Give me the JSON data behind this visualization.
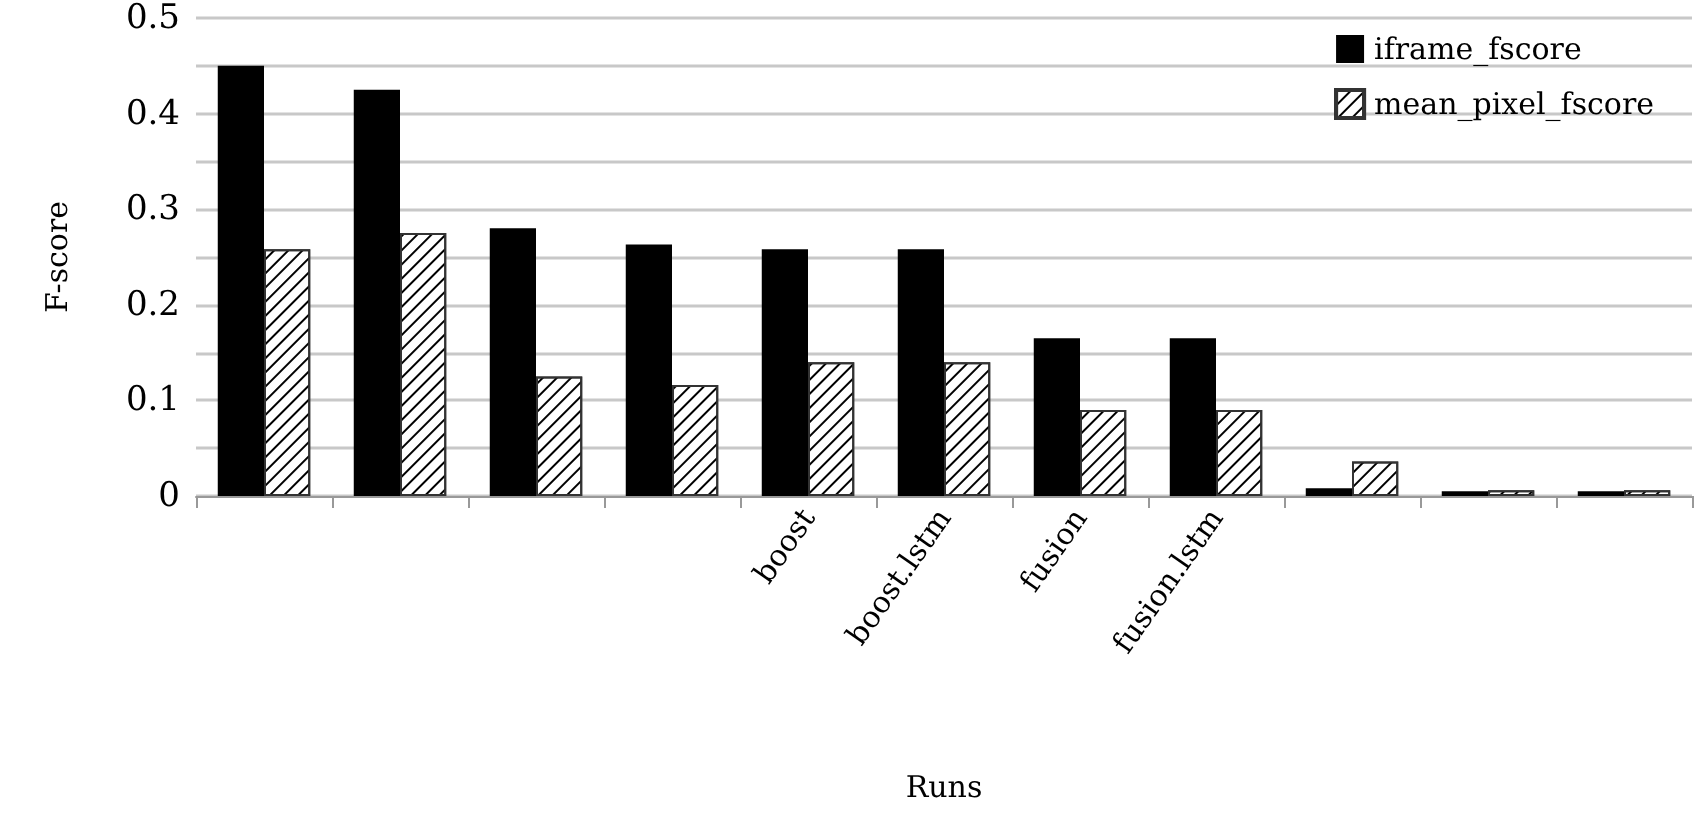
{
  "chart_data": {
    "type": "bar",
    "xlabel": "Runs",
    "ylabel": "F-score",
    "categories": [
      null,
      null,
      null,
      null,
      "boost",
      "boost.lstm",
      "fusion",
      "fusion.lstm",
      null,
      null,
      null
    ],
    "series": [
      {
        "name": "iframe_fscore",
        "color": "#000000",
        "values": [
          0.45,
          0.425,
          0.28,
          0.263,
          0.258,
          0.258,
          0.165,
          0.165,
          0.008,
          0.005,
          0.005
        ]
      },
      {
        "name": "mean_pixel_fscore",
        "color": "#ffffff",
        "values": [
          0.258,
          0.275,
          0.125,
          0.116,
          0.14,
          0.14,
          0.09,
          0.09,
          0.036,
          0.006,
          0.006
        ]
      }
    ],
    "ylim": [
      0,
      0.5
    ],
    "yticks": [
      0,
      {
        "value": 0.05,
        "label": null
      },
      0.1,
      {
        "value": 0.15,
        "label": null
      },
      0.2,
      {
        "value": 0.25,
        "label": null
      },
      0.3,
      {
        "value": 0.35,
        "label": null
      },
      0.4,
      {
        "value": 0.45,
        "label": null
      },
      0.5
    ],
    "grid": "y",
    "legend": "top right"
  }
}
